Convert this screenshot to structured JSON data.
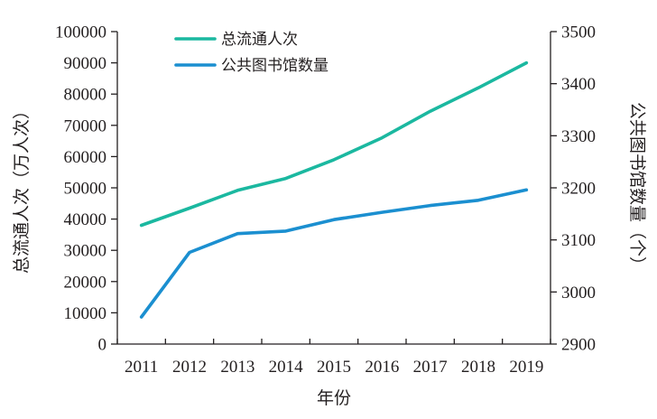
{
  "chart_data": {
    "type": "line",
    "x": [
      "2011",
      "2012",
      "2013",
      "2014",
      "2015",
      "2016",
      "2017",
      "2018",
      "2019"
    ],
    "xlabel": "年份",
    "ylabel_left": "总流通人次（万人次）",
    "ylabel_right": "公共图书馆数量（个）",
    "ylim_left": [
      0,
      100000
    ],
    "ylim_right": [
      2900,
      3500
    ],
    "yticks_left": [
      "0",
      "10000",
      "20000",
      "30000",
      "40000",
      "50000",
      "60000",
      "70000",
      "80000",
      "90000",
      "100000"
    ],
    "yticks_right": [
      "2900",
      "3000",
      "3100",
      "3200",
      "3300",
      "3400",
      "3500"
    ],
    "legend_position": "top-center",
    "grid": false,
    "series": [
      {
        "name": "总流通人次",
        "axis": "left",
        "color": "#1bb8a0",
        "values": [
          38000,
          43500,
          49200,
          53000,
          59000,
          66000,
          74500,
          82000,
          90000
        ]
      },
      {
        "name": "公共图书馆数量",
        "axis": "right",
        "color": "#1b8fd0",
        "values": [
          2952,
          3076,
          3112,
          3117,
          3139,
          3153,
          3166,
          3176,
          3196
        ]
      }
    ]
  }
}
